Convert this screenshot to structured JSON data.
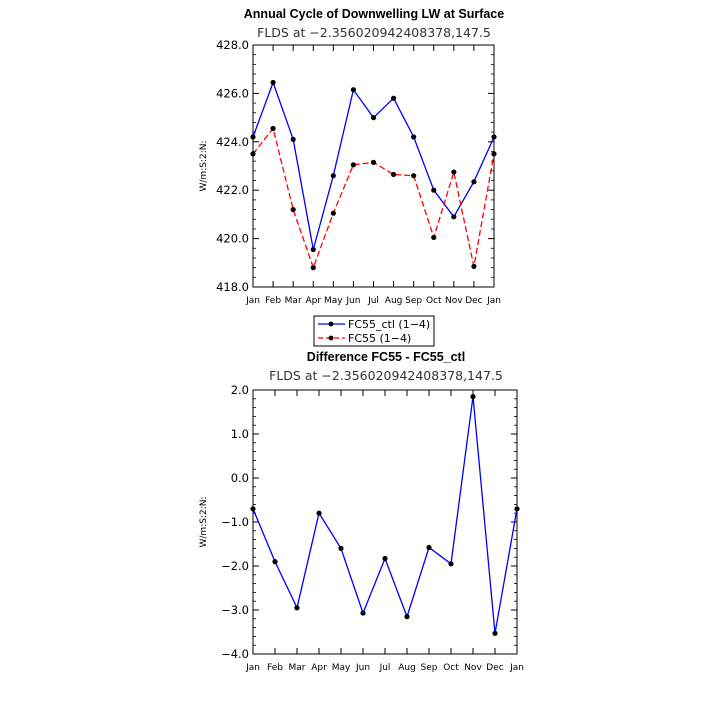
{
  "chart_data": [
    {
      "type": "line",
      "title": "Annual Cycle of Downwelling LW at Surface",
      "subtitle": "FLDS at −2.356020942408378,147.5",
      "ylabel": "W/m:S:2:N:",
      "xlabel": "",
      "categories": [
        "Jan",
        "Feb",
        "Mar",
        "Apr",
        "May",
        "Jun",
        "Jul",
        "Aug",
        "Sep",
        "Oct",
        "Nov",
        "Dec",
        "Jan"
      ],
      "ylim": [
        418.0,
        428.0
      ],
      "yticks": [
        418.0,
        420.0,
        422.0,
        424.0,
        426.0,
        428.0
      ],
      "ytick_labels": [
        "418.0",
        "420.0",
        "422.0",
        "424.0",
        "426.0",
        "428.0"
      ],
      "series": [
        {
          "name": "FC55_ctl (1−4)",
          "color": "#0000ff",
          "dash": "solid",
          "values": [
            424.2,
            426.45,
            424.1,
            419.55,
            422.6,
            426.15,
            425.0,
            425.8,
            424.2,
            422.0,
            420.9,
            422.35,
            424.2
          ]
        },
        {
          "name": "FC55 (1−4)",
          "color": "#ff0000",
          "dash": "dashed",
          "values": [
            423.5,
            424.55,
            421.2,
            418.8,
            421.05,
            423.05,
            423.15,
            422.65,
            422.6,
            420.05,
            422.75,
            418.85,
            423.5
          ]
        }
      ],
      "legend": "below"
    },
    {
      "type": "line",
      "title": "Difference FC55 - FC55_ctl",
      "subtitle": "FLDS at −2.356020942408378,147.5",
      "ylabel": "W/m:S:2:N:",
      "xlabel": "",
      "categories": [
        "Jan",
        "Feb",
        "Mar",
        "Apr",
        "May",
        "Jun",
        "Jul",
        "Aug",
        "Sep",
        "Oct",
        "Nov",
        "Dec",
        "Jan"
      ],
      "ylim": [
        -4.0,
        2.0
      ],
      "yticks": [
        -4.0,
        -3.0,
        -2.0,
        -1.0,
        0.0,
        1.0,
        2.0
      ],
      "ytick_labels": [
        "−4.0",
        "−3.0",
        "−2.0",
        "−1.0",
        "0.0",
        "1.0",
        "2.0"
      ],
      "series": [
        {
          "name": "",
          "color": "#0000ff",
          "dash": "solid",
          "values": [
            -0.7,
            -1.9,
            -2.95,
            -0.8,
            -1.6,
            -3.07,
            -1.83,
            -3.15,
            -1.58,
            -1.95,
            1.85,
            -3.53,
            -0.7
          ]
        }
      ]
    }
  ]
}
